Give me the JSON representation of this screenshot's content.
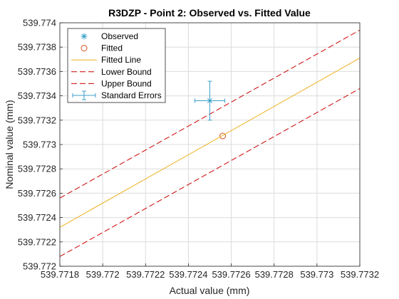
{
  "chart_data": {
    "type": "scatter",
    "title": "R3DZP - Point 2: Observed vs. Fitted Value",
    "xlabel": "Actual value (mm)",
    "ylabel": "Nominal value (mm)",
    "xlim": [
      539.7718,
      539.7732
    ],
    "ylim": [
      539.772,
      539.774
    ],
    "xticks": [
      539.7718,
      539.772,
      539.7722,
      539.7724,
      539.7726,
      539.7728,
      539.773,
      539.7732
    ],
    "yticks": [
      539.772,
      539.7722,
      539.7724,
      539.7726,
      539.7728,
      539.773,
      539.7732,
      539.7734,
      539.7736,
      539.7738,
      539.774
    ],
    "xtick_labels": [
      "539.7718",
      "539.772",
      "539.7722",
      "539.7724",
      "539.7726",
      "539.7728",
      "539.773",
      "539.7732"
    ],
    "ytick_labels": [
      "539.772",
      "539.7722",
      "539.7724",
      "539.7726",
      "539.7728",
      "539.773",
      "539.7732",
      "539.7734",
      "539.7736",
      "539.7738",
      "539.774"
    ],
    "grid": true,
    "legend_position": "top-left",
    "series": [
      {
        "name": "Observed",
        "kind": "marker",
        "marker": "asterisk",
        "color": "#3aa0c8",
        "points": [
          [
            539.7725,
            539.77336
          ]
        ]
      },
      {
        "name": "Fitted",
        "kind": "marker",
        "marker": "circle",
        "color": "#d95319",
        "points": [
          [
            539.77256,
            539.77307
          ]
        ]
      },
      {
        "name": "Fitted Line",
        "kind": "line",
        "style": "solid",
        "color": "#edb120",
        "points": [
          [
            539.7718,
            539.77232
          ],
          [
            539.7732,
            539.77371
          ]
        ]
      },
      {
        "name": "Lower Bound",
        "kind": "line",
        "style": "dashed",
        "color": "#cc0000",
        "points": [
          [
            539.7718,
            539.77208
          ],
          [
            539.7732,
            539.77346
          ]
        ]
      },
      {
        "name": "Upper Bound",
        "kind": "line",
        "style": "dashed",
        "color": "#cc0000",
        "points": [
          [
            539.7718,
            539.77256
          ],
          [
            539.7732,
            539.77394
          ]
        ]
      },
      {
        "name": "Standard Errors",
        "kind": "errorbar",
        "color": "#3aa0c8",
        "center": [
          539.7725,
          539.77336
        ],
        "xerr": [
          7e-05,
          7e-05
        ],
        "yerr": [
          0.00016,
          0.00016
        ]
      }
    ]
  }
}
